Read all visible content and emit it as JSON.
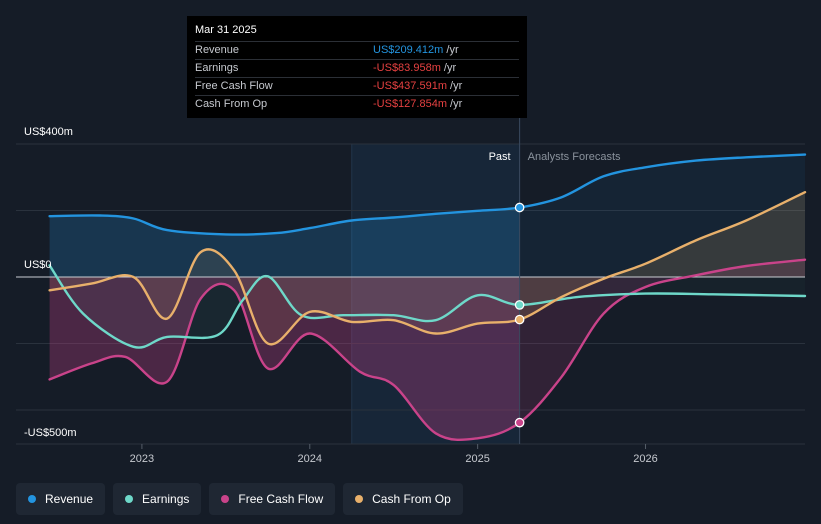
{
  "tooltip": {
    "date": "Mar 31 2025",
    "rows": [
      {
        "label": "Revenue",
        "value": "US$209.412m",
        "unit": " /yr",
        "color": "#2394df"
      },
      {
        "label": "Earnings",
        "value": "-US$83.958m",
        "unit": " /yr",
        "color": "#e64141"
      },
      {
        "label": "Free Cash Flow",
        "value": "-US$437.591m",
        "unit": " /yr",
        "color": "#e64141"
      },
      {
        "label": "Cash From Op",
        "value": "-US$127.854m",
        "unit": " /yr",
        "color": "#e64141"
      }
    ]
  },
  "legend": [
    {
      "label": "Revenue",
      "color": "#2394df"
    },
    {
      "label": "Earnings",
      "color": "#6ed8c9"
    },
    {
      "label": "Free Cash Flow",
      "color": "#c9438a"
    },
    {
      "label": "Cash From Op",
      "color": "#e8b06b"
    }
  ],
  "chart_data": {
    "type": "line",
    "title": "",
    "y_axis_labels": [
      "US$400m",
      "US$0",
      "-US$500m"
    ],
    "y_axis_values": [
      400,
      0,
      -500
    ],
    "ylim": [
      -500,
      400
    ],
    "xlim": [
      2022.25,
      2026.95
    ],
    "x_ticks": [
      {
        "label": "2023",
        "value": 2023
      },
      {
        "label": "2024",
        "value": 2024
      },
      {
        "label": "2025",
        "value": 2025
      },
      {
        "label": "2026",
        "value": 2026
      }
    ],
    "past_label": "Past",
    "forecast_label": "Analysts Forecasts",
    "past_start": 2024.25,
    "divider": 2025.25,
    "series": [
      {
        "name": "Revenue",
        "color": "#2394df",
        "points": [
          [
            2022.45,
            183
          ],
          [
            2022.75,
            185
          ],
          [
            2022.95,
            176
          ],
          [
            2023.15,
            141
          ],
          [
            2023.5,
            128
          ],
          [
            2023.8,
            132
          ],
          [
            2024.0,
            147
          ],
          [
            2024.25,
            170
          ],
          [
            2024.5,
            179
          ],
          [
            2024.75,
            190
          ],
          [
            2025.0,
            199
          ],
          [
            2025.25,
            209
          ],
          [
            2025.5,
            240
          ],
          [
            2025.75,
            303
          ],
          [
            2026.0,
            330
          ],
          [
            2026.3,
            350
          ],
          [
            2026.6,
            360
          ],
          [
            2026.95,
            368
          ]
        ]
      },
      {
        "name": "Earnings",
        "color": "#6ed8c9",
        "points": [
          [
            2022.45,
            35
          ],
          [
            2022.65,
            -110
          ],
          [
            2022.95,
            -210
          ],
          [
            2023.15,
            -180
          ],
          [
            2023.45,
            -175
          ],
          [
            2023.6,
            -70
          ],
          [
            2023.75,
            2
          ],
          [
            2023.95,
            -115
          ],
          [
            2024.2,
            -115
          ],
          [
            2024.5,
            -115
          ],
          [
            2024.75,
            -130
          ],
          [
            2025.0,
            -55
          ],
          [
            2025.25,
            -84
          ],
          [
            2025.6,
            -60
          ],
          [
            2026.0,
            -50
          ],
          [
            2026.4,
            -52
          ],
          [
            2026.95,
            -57
          ]
        ]
      },
      {
        "name": "Free Cash Flow",
        "color": "#c9438a",
        "points": [
          [
            2022.45,
            -308
          ],
          [
            2022.7,
            -260
          ],
          [
            2022.9,
            -240
          ],
          [
            2023.15,
            -315
          ],
          [
            2023.35,
            -65
          ],
          [
            2023.55,
            -40
          ],
          [
            2023.75,
            -275
          ],
          [
            2024.0,
            -170
          ],
          [
            2024.3,
            -285
          ],
          [
            2024.5,
            -325
          ],
          [
            2024.75,
            -470
          ],
          [
            2025.0,
            -485
          ],
          [
            2025.25,
            -438
          ],
          [
            2025.5,
            -300
          ],
          [
            2025.75,
            -110
          ],
          [
            2026.0,
            -30
          ],
          [
            2026.3,
            5
          ],
          [
            2026.6,
            33
          ],
          [
            2026.95,
            52
          ]
        ]
      },
      {
        "name": "Cash From Op",
        "color": "#e8b06b",
        "points": [
          [
            2022.45,
            -40
          ],
          [
            2022.7,
            -20
          ],
          [
            2022.95,
            0
          ],
          [
            2023.15,
            -125
          ],
          [
            2023.35,
            75
          ],
          [
            2023.55,
            20
          ],
          [
            2023.75,
            -200
          ],
          [
            2024.0,
            -105
          ],
          [
            2024.25,
            -135
          ],
          [
            2024.5,
            -130
          ],
          [
            2024.75,
            -170
          ],
          [
            2025.0,
            -140
          ],
          [
            2025.25,
            -128
          ],
          [
            2025.5,
            -60
          ],
          [
            2025.75,
            -5
          ],
          [
            2026.0,
            40
          ],
          [
            2026.3,
            110
          ],
          [
            2026.6,
            170
          ],
          [
            2026.95,
            255
          ]
        ]
      }
    ],
    "highlight": {
      "x": 2025.25,
      "points": [
        {
          "series": "Revenue",
          "value": 209
        },
        {
          "series": "Earnings",
          "value": -84
        },
        {
          "series": "Free Cash Flow",
          "value": -438
        },
        {
          "series": "Cash From Op",
          "value": -128
        }
      ]
    }
  }
}
